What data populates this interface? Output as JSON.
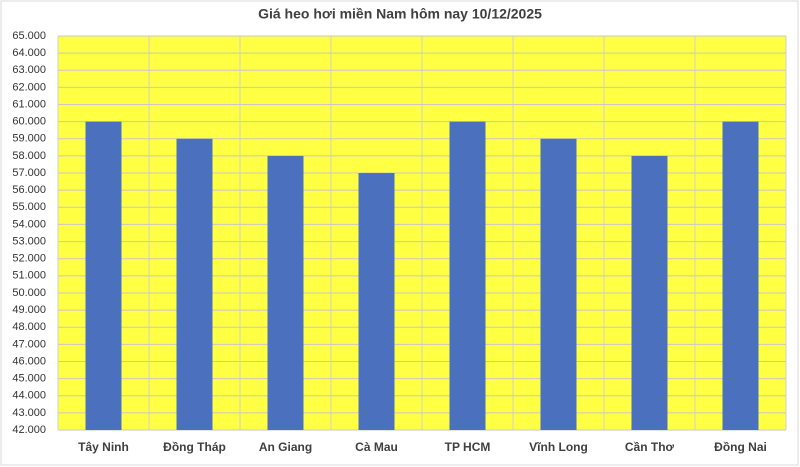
{
  "chart_data": {
    "type": "bar",
    "title": "Giá heo hơi miền Nam hôm nay 10/12/2025",
    "categories": [
      "Tây Ninh",
      "Đồng Tháp",
      "An Giang",
      "Cà Mau",
      "TP HCM",
      "Vĩnh Long",
      "Cần Thơ",
      "Đồng Nai"
    ],
    "values": [
      60000,
      59000,
      58000,
      57000,
      60000,
      59000,
      58000,
      60000
    ],
    "color": "#4a70be",
    "plot_background": "#ffff44",
    "ylim": [
      42000,
      65000
    ],
    "yticks": [
      {
        "value": 42000,
        "label": "42.000"
      },
      {
        "value": 43000,
        "label": "43.000"
      },
      {
        "value": 44000,
        "label": "44.000"
      },
      {
        "value": 45000,
        "label": "45.000"
      },
      {
        "value": 46000,
        "label": "46.000"
      },
      {
        "value": 47000,
        "label": "47.000"
      },
      {
        "value": 48000,
        "label": "48.000"
      },
      {
        "value": 49000,
        "label": "49.000"
      },
      {
        "value": 50000,
        "label": "50.000"
      },
      {
        "value": 51000,
        "label": "51.000"
      },
      {
        "value": 52000,
        "label": "52.000"
      },
      {
        "value": 53000,
        "label": "53.000"
      },
      {
        "value": 54000,
        "label": "54.000"
      },
      {
        "value": 55000,
        "label": "55.000"
      },
      {
        "value": 56000,
        "label": "56.000"
      },
      {
        "value": 57000,
        "label": "57.000"
      },
      {
        "value": 58000,
        "label": "58.000"
      },
      {
        "value": 59000,
        "label": "59.000"
      },
      {
        "value": 60000,
        "label": "60.000"
      },
      {
        "value": 61000,
        "label": "61.000"
      },
      {
        "value": 62000,
        "label": "62.000"
      },
      {
        "value": 63000,
        "label": "63.000"
      },
      {
        "value": 64000,
        "label": "64.000"
      },
      {
        "value": 65000,
        "label": "65.000"
      }
    ],
    "grid": true
  }
}
